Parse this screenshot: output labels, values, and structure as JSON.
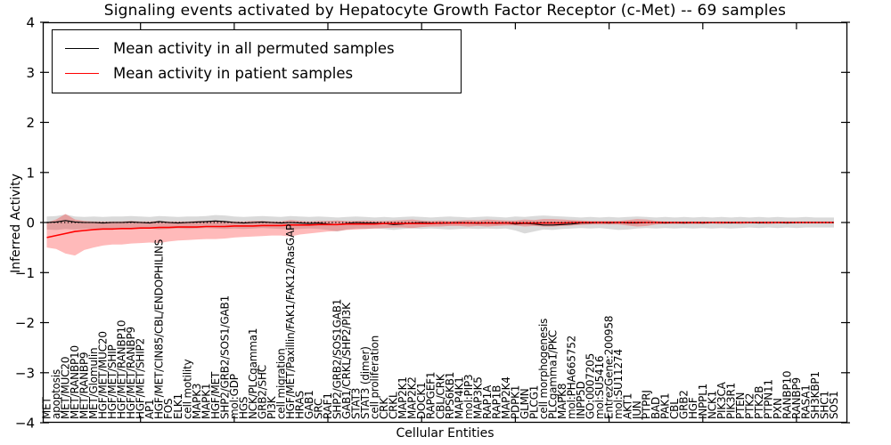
{
  "title": "Signaling events activated by Hepatocyte Growth Factor Receptor (c-Met) -- 69 samples",
  "axes": {
    "x_label": "Cellular Entities",
    "y_label": "Inferred Activity",
    "ylim": [
      -4,
      4
    ],
    "y_tick_values": [
      4,
      3,
      2,
      1,
      0,
      -1,
      -2,
      -3,
      -4
    ],
    "y_tick_labels": [
      "4",
      "3",
      "2",
      "1",
      "0",
      "−1",
      "−2",
      "−3",
      "−4"
    ]
  },
  "legend": [
    {
      "label": "Mean activity in all permuted samples",
      "color": "#000000"
    },
    {
      "label": "Mean activity in patient samples",
      "color": "#ff0000"
    }
  ],
  "colors": {
    "permuted_line": "#000000",
    "patient_line": "#ff0000",
    "permuted_band_fill": "rgba(140,140,140,0.32)",
    "patient_band_fill": "rgba(255,0,0,0.27)",
    "zero_line": "#000000",
    "frame": "#000000"
  },
  "chart_data": {
    "type": "line",
    "title": "Signaling events activated by Hepatocyte Growth Factor Receptor (c-Met) -- 69 samples",
    "xlabel": "Cellular Entities",
    "ylabel": "Inferred Activity",
    "ylim": [
      -4,
      4
    ],
    "grid": false,
    "legend_position": "upper left",
    "zero_line": true,
    "categories": [
      "MET",
      "apoptosis",
      "MET/MUC20",
      "MET/RANBP10",
      "MET/RANBP9",
      "MET/Glomulin",
      "HGF/MET/MUC20",
      "HGF/MET/SHIP",
      "HGF/MET/RANBP10",
      "HGF/MET/RANBP9",
      "HGF/MET/SHIP2",
      "AP1",
      "HGF/MET/CIN85/CBL/ENDOPHILINS",
      "FOS",
      "ELK1",
      "cell motility",
      "MAPK3",
      "MAPK1",
      "HGF/MET",
      "SHP2/GRB2/SOS1/GAB1",
      "mol:GDP",
      "HGS",
      "NCK/PLCgamma1",
      "GRB2/SHC",
      "PI3K",
      "cell migration",
      "HGF/MET/Paxillin/FAK1/FAK12/RasGAP",
      "HRAS",
      "GAB1",
      "SRC",
      "RAF1",
      "SHP2/GRB2/SOS1GAB1",
      "GAB1/CRKL/SHP2/PI3K",
      "STAT3",
      "STAT3 (dimer)",
      "cell proliferation",
      "CRK",
      "CRKL",
      "MAP2K1",
      "MAP2K2",
      "DOCK1",
      "RAPGEF1",
      "CBL/CRK",
      "RPS6KB1",
      "MAP4K1",
      "mol:PIP3",
      "MAP3K5",
      "RAP1A",
      "RAP1B",
      "MAP2K4",
      "PDPK1",
      "GLMN",
      "PLCG1",
      "cell morphogenesis",
      "PLCgamma1/PKC",
      "MAPK8",
      "mol:PHA665752",
      "INPP5D",
      "GO:0007205",
      "mol:SU5416",
      "EntrezGene:200958",
      "mol:SU11274",
      "AKT1",
      "JUN",
      "PTPRJ",
      "BAD",
      "PAK1",
      "CBL",
      "GRB2",
      "HGF",
      "INPPL1",
      "NCK1",
      "PIK3CA",
      "PIK3R1",
      "PTEN",
      "PTK2",
      "PTK2B",
      "PTPN11",
      "PXN",
      "RANBP10",
      "RANBP9",
      "RASA1",
      "SH3KBP1",
      "SHC1",
      "SOS1"
    ],
    "series": [
      {
        "name": "Mean activity in all permuted samples",
        "color": "#000000",
        "values": [
          0,
          0.01,
          0.04,
          0.01,
          0,
          0,
          -0.01,
          0,
          0,
          0.01,
          0,
          -0.01,
          0.02,
          0,
          -0.01,
          0,
          0.01,
          0.02,
          0.03,
          0.02,
          0,
          -0.01,
          0,
          0.01,
          0,
          -0.01,
          0,
          -0.01,
          -0.02,
          -0.01,
          -0.03,
          -0.04,
          -0.02,
          0,
          -0.01,
          -0.01,
          -0.02,
          -0.04,
          -0.03,
          -0.01,
          0,
          -0.01,
          -0.02,
          -0.01,
          0,
          -0.01,
          -0.02,
          -0.01,
          -0.02,
          -0.01,
          -0.03,
          -0.02,
          -0.03,
          -0.05,
          -0.05,
          -0.04,
          -0.03,
          -0.01,
          -0.01,
          0,
          -0.01,
          0,
          -0.01,
          -0.01,
          0,
          0,
          -0.01,
          0,
          -0.01,
          0,
          -0.01,
          0,
          0,
          -0.01,
          0,
          0,
          -0.01,
          0,
          0,
          -0.01,
          0,
          0,
          0,
          0,
          0
        ],
        "band_upper": [
          0.12,
          0.13,
          0.16,
          0.12,
          0.11,
          0.12,
          0.11,
          0.12,
          0.12,
          0.13,
          0.12,
          0.11,
          0.13,
          0.12,
          0.11,
          0.12,
          0.12,
          0.13,
          0.15,
          0.14,
          0.12,
          0.11,
          0.12,
          0.13,
          0.12,
          0.11,
          0.13,
          0.12,
          0.11,
          0.12,
          0.11,
          0.1,
          0.11,
          0.12,
          0.11,
          0.1,
          0.11,
          0.1,
          0.11,
          0.12,
          0.11,
          0.1,
          0.11,
          0.12,
          0.11,
          0.1,
          0.11,
          0.12,
          0.11,
          0.1,
          0.12,
          0.11,
          0.13,
          0.14,
          0.13,
          0.12,
          0.11,
          0.1,
          0.11,
          0.1,
          0.11,
          0.1,
          0.11,
          0.12,
          0.11,
          0.1,
          0.11,
          0.1,
          0.11,
          0.1,
          0.11,
          0.1,
          0.11,
          0.1,
          0.11,
          0.1,
          0.11,
          0.1,
          0.11,
          0.1,
          0.1,
          0.11,
          0.1,
          0.1,
          0.1
        ],
        "band_lower": [
          -0.14,
          -0.15,
          -0.13,
          -0.14,
          -0.13,
          -0.12,
          -0.13,
          -0.12,
          -0.13,
          -0.12,
          -0.13,
          -0.12,
          -0.14,
          -0.13,
          -0.12,
          -0.13,
          -0.12,
          -0.11,
          -0.12,
          -0.13,
          -0.12,
          -0.13,
          -0.12,
          -0.11,
          -0.12,
          -0.13,
          -0.14,
          -0.13,
          -0.12,
          -0.13,
          -0.15,
          -0.18,
          -0.14,
          -0.12,
          -0.13,
          -0.12,
          -0.13,
          -0.15,
          -0.13,
          -0.12,
          -0.13,
          -0.12,
          -0.13,
          -0.14,
          -0.13,
          -0.12,
          -0.13,
          -0.12,
          -0.13,
          -0.12,
          -0.16,
          -0.22,
          -0.18,
          -0.14,
          -0.15,
          -0.13,
          -0.12,
          -0.11,
          -0.12,
          -0.11,
          -0.13,
          -0.15,
          -0.14,
          -0.12,
          -0.11,
          -0.12,
          -0.11,
          -0.12,
          -0.11,
          -0.12,
          -0.11,
          -0.12,
          -0.11,
          -0.12,
          -0.11,
          -0.1,
          -0.11,
          -0.1,
          -0.11,
          -0.1,
          -0.11,
          -0.1,
          -0.1,
          -0.1,
          -0.1
        ]
      },
      {
        "name": "Mean activity in patient samples",
        "color": "#ff0000",
        "values": [
          -0.3,
          -0.26,
          -0.22,
          -0.18,
          -0.16,
          -0.14,
          -0.13,
          -0.13,
          -0.12,
          -0.12,
          -0.11,
          -0.11,
          -0.1,
          -0.1,
          -0.09,
          -0.09,
          -0.09,
          -0.08,
          -0.08,
          -0.08,
          -0.07,
          -0.07,
          -0.07,
          -0.06,
          -0.06,
          -0.06,
          -0.05,
          -0.05,
          -0.05,
          -0.04,
          -0.04,
          -0.04,
          -0.03,
          -0.03,
          -0.03,
          -0.03,
          -0.02,
          -0.02,
          -0.02,
          -0.02,
          -0.02,
          -0.02,
          -0.01,
          -0.01,
          -0.01,
          -0.01,
          -0.01,
          -0.01,
          -0.01,
          -0.01,
          -0.01,
          -0.01,
          -0.01,
          -0.01,
          -0.01,
          -0.01,
          0,
          0,
          0,
          0,
          0,
          0,
          0,
          0,
          0,
          0,
          0,
          0,
          0,
          0,
          0,
          0,
          0,
          0,
          0,
          0,
          0,
          0,
          0,
          0,
          0,
          0,
          0,
          0,
          0
        ],
        "band_upper": [
          0,
          0.06,
          0.17,
          0.06,
          0.03,
          0.02,
          0.02,
          0.02,
          0.02,
          0.03,
          0.02,
          0.02,
          0.03,
          0.02,
          0.02,
          0.02,
          0.03,
          0.03,
          0.04,
          0.03,
          0.02,
          0.02,
          0.03,
          0.03,
          0.02,
          0.02,
          0.05,
          0.03,
          0.02,
          0.03,
          0.03,
          0.04,
          0.03,
          0.03,
          0.04,
          0.03,
          0.03,
          0.04,
          0.05,
          0.06,
          0.04,
          0.03,
          0.04,
          0.03,
          0.04,
          0.05,
          0.04,
          0.06,
          0.05,
          0.04,
          0.04,
          0.06,
          0.05,
          0.07,
          0.07,
          0.06,
          0.05,
          0.04,
          0.03,
          0.03,
          0.03,
          0.03,
          0.05,
          0.07,
          0.06,
          0.03,
          0.02,
          0.02,
          0.02,
          0.02,
          0.02,
          0.02,
          0.02,
          0.02,
          0.02,
          0.02,
          0.02,
          0.02,
          0.02,
          0.02,
          0.02,
          0.02,
          0.02,
          0.02,
          0.02
        ],
        "band_lower": [
          -0.5,
          -0.53,
          -0.62,
          -0.66,
          -0.55,
          -0.5,
          -0.46,
          -0.44,
          -0.44,
          -0.42,
          -0.41,
          -0.4,
          -0.41,
          -0.38,
          -0.36,
          -0.35,
          -0.34,
          -0.33,
          -0.33,
          -0.32,
          -0.3,
          -0.29,
          -0.28,
          -0.27,
          -0.26,
          -0.26,
          -0.28,
          -0.24,
          -0.22,
          -0.2,
          -0.18,
          -0.17,
          -0.15,
          -0.14,
          -0.13,
          -0.12,
          -0.11,
          -0.1,
          -0.1,
          -0.11,
          -0.09,
          -0.08,
          -0.08,
          -0.07,
          -0.07,
          -0.08,
          -0.07,
          -0.08,
          -0.07,
          -0.06,
          -0.06,
          -0.08,
          -0.07,
          -0.08,
          -0.08,
          -0.07,
          -0.06,
          -0.05,
          -0.04,
          -0.04,
          -0.04,
          -0.04,
          -0.06,
          -0.08,
          -0.07,
          -0.04,
          -0.03,
          -0.03,
          -0.03,
          -0.03,
          -0.03,
          -0.02,
          -0.03,
          -0.02,
          -0.03,
          -0.02,
          -0.02,
          -0.03,
          -0.02,
          -0.02,
          -0.02,
          -0.02,
          -0.02,
          -0.02,
          -0.02
        ]
      }
    ]
  }
}
